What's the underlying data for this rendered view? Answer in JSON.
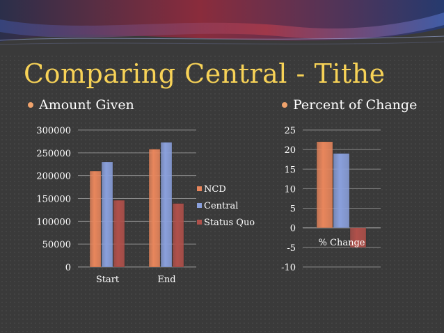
{
  "slide": {
    "title": "Comparing Central - Tithe",
    "bullets": [
      "Amount Given",
      "Percent of Change"
    ]
  },
  "colors": {
    "title": "#f7d257",
    "bullet": "#f0a36c",
    "ncd": "#e8865c",
    "central": "#8aa0dc",
    "status_quo": "#b0504a"
  },
  "chart_data": [
    {
      "type": "bar",
      "categories": [
        "Start",
        "End"
      ],
      "series": [
        {
          "name": "NCD",
          "values": [
            210000,
            258000
          ]
        },
        {
          "name": "Central",
          "values": [
            230000,
            273000
          ]
        },
        {
          "name": "Status Quo",
          "values": [
            146000,
            139000
          ]
        }
      ],
      "ylim": [
        0,
        300000
      ],
      "yticks": [
        0,
        50000,
        100000,
        150000,
        200000,
        250000,
        300000
      ],
      "grid": true,
      "legend": "right"
    },
    {
      "type": "bar",
      "categories": [
        "% Change"
      ],
      "series": [
        {
          "name": "NCD",
          "values": [
            22
          ]
        },
        {
          "name": "Central",
          "values": [
            19
          ]
        },
        {
          "name": "Status Quo",
          "values": [
            -5
          ]
        }
      ],
      "ylim": [
        -10,
        25
      ],
      "yticks": [
        -10,
        -5,
        0,
        5,
        10,
        15,
        20,
        25
      ],
      "grid": true,
      "legend": "none"
    }
  ]
}
